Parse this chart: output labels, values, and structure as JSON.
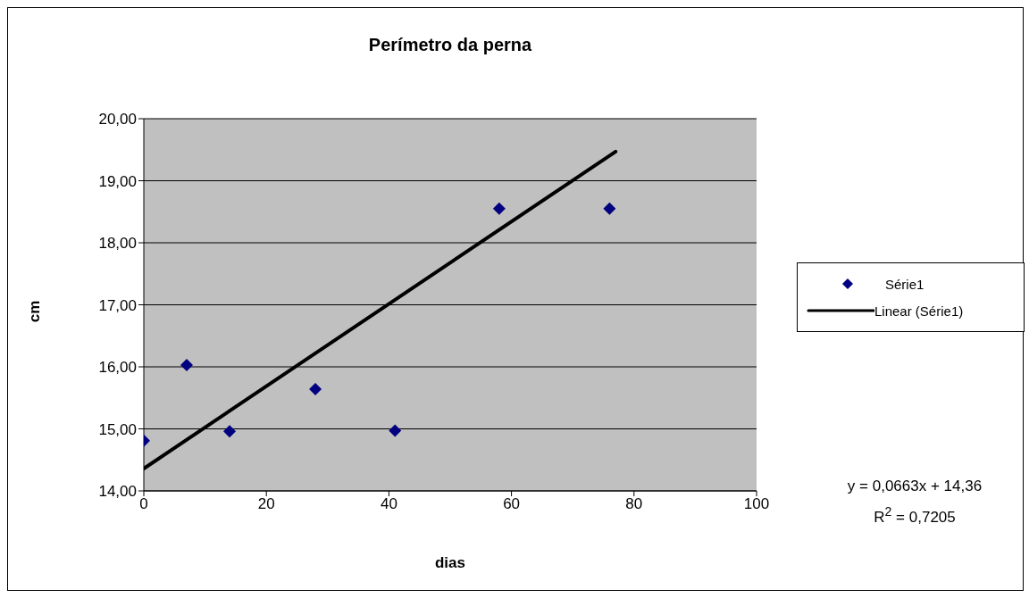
{
  "chart_data": {
    "type": "scatter",
    "title": "Perímetro da perna",
    "xlabel": "dias",
    "ylabel": "cm",
    "series": [
      {
        "name": "Série1",
        "type": "scatter",
        "color": "#000080",
        "marker": "diamond",
        "x": [
          0,
          7,
          14,
          28,
          41,
          58,
          76
        ],
        "values": [
          14.81,
          16.03,
          14.96,
          15.64,
          14.97,
          18.55,
          18.55
        ]
      },
      {
        "name": "Linear (Série1)",
        "type": "line",
        "color": "#000000",
        "marker": "none",
        "x": [
          0,
          77
        ],
        "values": [
          14.36,
          19.47
        ]
      }
    ],
    "xlim": [
      0,
      100
    ],
    "xticks": [
      0,
      20,
      40,
      60,
      80,
      100
    ],
    "ylim": [
      14,
      20
    ],
    "yticks": [
      {
        "value": 14,
        "label": "14,00"
      },
      {
        "value": 15,
        "label": "15,00"
      },
      {
        "value": 16,
        "label": "16,00"
      },
      {
        "value": 17,
        "label": "17,00"
      },
      {
        "value": 18,
        "label": "18,00"
      },
      {
        "value": 19,
        "label": "19,00"
      },
      {
        "value": 20,
        "label": "20,00"
      }
    ],
    "grid": "y",
    "legend": "right",
    "annotations": [
      "y = 0,0663x + 14,36",
      "R$^{2}$ = 0,7205"
    ]
  }
}
